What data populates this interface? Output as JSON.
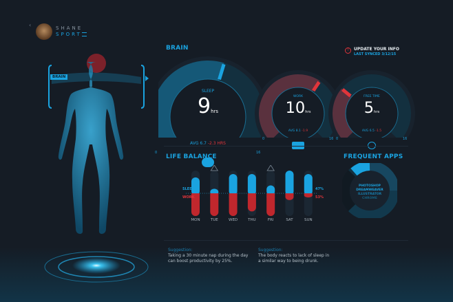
{
  "brand": {
    "line1": "SHANE",
    "line2": "SPORT",
    "back_icon": "chevron-left-icon",
    "menu_icon": "menu-icon",
    "avatar": "bear-avatar"
  },
  "body_panel": {
    "tag": "BRAIN"
  },
  "brain": {
    "title": "BRAIN",
    "update": {
      "label": "UPDATE YOUR INFO",
      "synced": "LAST SYNCED 3/12/15",
      "icon": "alert-icon"
    },
    "gauges": [
      {
        "label": "SLEEP",
        "value": "9",
        "unit": "hrs",
        "avg": "AVG 6.7",
        "delta": "-2.3 HRS",
        "min": "0",
        "max": "16",
        "icon": "brain-icon",
        "color": "#1aa3e0",
        "level": 9
      },
      {
        "label": "WORK",
        "value": "10",
        "unit": "hrs",
        "avg": "AVG 8.1",
        "delta": "-1.9",
        "min": "0",
        "max": "16",
        "icon": "briefcase-icon",
        "color": "#e0353b",
        "level": 10
      },
      {
        "label": "FREE TIME",
        "value": "5",
        "unit": "hrs",
        "avg": "AVG 6.5",
        "delta": "-1.5",
        "min": "0",
        "max": "16",
        "icon": "clock-icon",
        "color": "#e0353b",
        "level": 5
      }
    ]
  },
  "life_balance": {
    "title": "LIFE BALANCE",
    "sleep_label": "SLEEP",
    "work_label": "WORK",
    "sleep_pct": "47%",
    "work_pct": "53%",
    "chart_data": {
      "type": "bar",
      "categories": [
        "MON",
        "TUE",
        "WED",
        "THU",
        "FRI",
        "SAT",
        "SUN"
      ],
      "series": [
        {
          "name": "SLEEP",
          "color": "#1aa3e0",
          "values": [
            0.7,
            0.2,
            0.85,
            0.85,
            0.35,
            1.0,
            0.85
          ]
        },
        {
          "name": "WORK",
          "color": "#c0272d",
          "values": [
            1.0,
            1.0,
            1.0,
            0.8,
            1.0,
            0.3,
            0.1
          ]
        }
      ],
      "warnings": [
        "TUE",
        "FRI"
      ],
      "ylim": [
        -1,
        1
      ]
    }
  },
  "frequent_apps": {
    "title": "FREQUENT APPS",
    "apps": [
      "PHOTOSHOP",
      "DREAMWEAVER",
      "ILLUSTRATOR",
      "CHROME"
    ],
    "app_colors": [
      "#1aa3e0",
      "#1aa3e0",
      "#1780b0",
      "#15607f"
    ]
  },
  "suggestions": [
    {
      "label": "Suggestion:",
      "text": "Taking a 30 minute nap during the day can boost productivity by 25%."
    },
    {
      "label": "Suggestion:",
      "text": "The body reacts to lack of sleep in a similar way to being drunk."
    }
  ]
}
